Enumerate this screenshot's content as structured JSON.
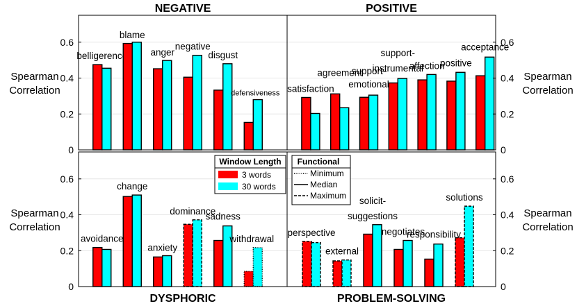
{
  "figure": {
    "ylabel_line1": "Spearman",
    "ylabel_line2": "Correlation",
    "colors": {
      "series1": "#ff0000",
      "series2": "#00ffff",
      "edge": "#000000",
      "grid": "#e6e6e6"
    }
  },
  "legend_window": {
    "title": "Window Length",
    "items": [
      "3 words",
      "30 words"
    ]
  },
  "legend_functional": {
    "title": "Functional",
    "items": [
      "Minimum",
      "Median",
      "Maximum"
    ]
  },
  "chart_data": [
    {
      "type": "bar",
      "title": "NEGATIVE",
      "title_position": "top",
      "ylabel_side": "left",
      "ylim": [
        0,
        0.75
      ],
      "yticks": [
        "0",
        "0.2",
        "0.4",
        "0.6"
      ],
      "categories": [
        "belligerence",
        "blame",
        "anger",
        "negative",
        "disgust",
        "defensiveness"
      ],
      "series": [
        {
          "name": "3 words",
          "values": [
            0.475,
            0.593,
            0.452,
            0.405,
            0.333,
            0.153
          ],
          "styles": [
            "solid",
            "solid",
            "solid",
            "solid",
            "solid",
            "solid"
          ]
        },
        {
          "name": "30 words",
          "values": [
            0.455,
            0.6,
            0.498,
            0.527,
            0.48,
            0.28
          ],
          "styles": [
            "solid",
            "solid",
            "solid",
            "solid",
            "solid",
            "solid"
          ]
        }
      ]
    },
    {
      "type": "bar",
      "title": "POSITIVE",
      "title_position": "top",
      "ylabel_side": "right",
      "ylim": [
        0,
        0.75
      ],
      "yticks": [
        "0",
        "0.2",
        "0.4",
        "0.6"
      ],
      "categories": [
        "satisfaction",
        "agreement",
        "support-emotional",
        "support-instrumental",
        "affection",
        "positive",
        "acceptance"
      ],
      "series": [
        {
          "name": "3 words",
          "values": [
            0.292,
            0.312,
            0.293,
            0.373,
            0.39,
            0.383,
            0.413
          ],
          "styles": [
            "solid",
            "solid",
            "solid",
            "solid",
            "solid",
            "solid",
            "solid"
          ]
        },
        {
          "name": "30 words",
          "values": [
            0.203,
            0.235,
            0.305,
            0.398,
            0.42,
            0.432,
            0.517
          ],
          "styles": [
            "solid",
            "solid",
            "solid",
            "solid",
            "solid",
            "solid",
            "solid"
          ]
        }
      ]
    },
    {
      "type": "bar",
      "title": "DYSPHORIC",
      "title_position": "bottom",
      "ylabel_side": "left",
      "ylim": [
        0,
        0.75
      ],
      "yticks": [
        "0",
        "0.2",
        "0.4",
        "0.6"
      ],
      "categories": [
        "avoidance",
        "change",
        "anxiety",
        "dominance",
        "sadness",
        "withdrawal"
      ],
      "series": [
        {
          "name": "3 words",
          "values": [
            0.218,
            0.502,
            0.165,
            0.347,
            0.257,
            0.085
          ],
          "styles": [
            "solid",
            "solid",
            "solid",
            "max",
            "solid",
            "min"
          ]
        },
        {
          "name": "30 words",
          "values": [
            0.207,
            0.51,
            0.172,
            0.372,
            0.338,
            0.217
          ],
          "styles": [
            "solid",
            "solid",
            "solid",
            "max",
            "solid",
            "min"
          ]
        }
      ]
    },
    {
      "type": "bar",
      "title": "PROBLEM-SOLVING",
      "title_position": "bottom",
      "ylabel_side": "right",
      "ylim": [
        0,
        0.75
      ],
      "yticks": [
        "0",
        "0.2",
        "0.4",
        "0.6"
      ],
      "categories": [
        "perspective",
        "external",
        "solicit-suggestions",
        "negotiates",
        "responsibility",
        "solutions"
      ],
      "series": [
        {
          "name": "3 words",
          "values": [
            0.252,
            0.143,
            0.292,
            0.207,
            0.153,
            0.272
          ],
          "styles": [
            "max",
            "max",
            "solid",
            "solid",
            "solid",
            "max"
          ]
        },
        {
          "name": "30 words",
          "values": [
            0.245,
            0.148,
            0.345,
            0.257,
            0.237,
            0.448
          ],
          "styles": [
            "max",
            "max",
            "solid",
            "solid",
            "solid",
            "max"
          ]
        }
      ]
    }
  ]
}
